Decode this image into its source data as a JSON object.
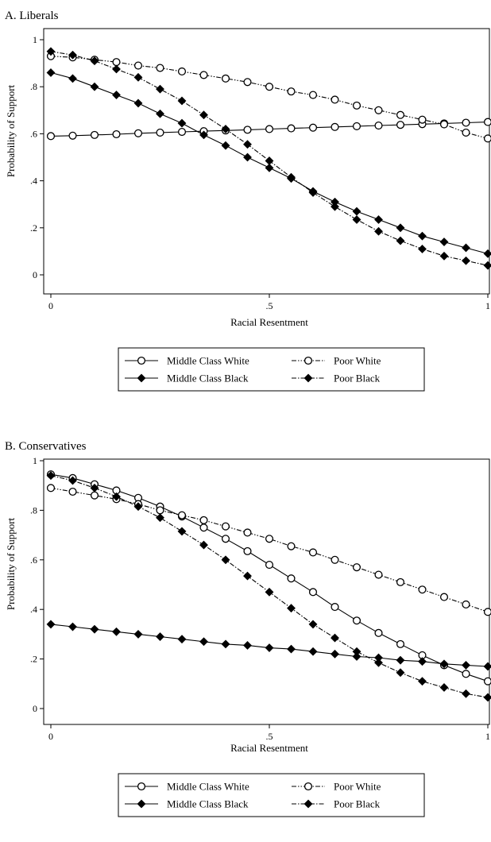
{
  "chart_data": [
    {
      "type": "line",
      "title": "A. Liberals",
      "xlabel": "Racial Resentment",
      "ylabel": "Probability of Support",
      "xlim": [
        0,
        1
      ],
      "ylim": [
        0,
        1
      ],
      "xticks": [
        0,
        0.5,
        1
      ],
      "xtick_labels": [
        "0",
        ".5",
        "1"
      ],
      "yticks": [
        0,
        0.2,
        0.4,
        0.6,
        0.8,
        1
      ],
      "ytick_labels": [
        "0",
        ".2",
        ".4",
        ".6",
        ".8",
        "1"
      ],
      "grid": false,
      "legend": "bottom",
      "x": [
        0,
        0.05,
        0.1,
        0.15,
        0.2,
        0.25,
        0.3,
        0.35,
        0.4,
        0.45,
        0.5,
        0.55,
        0.6,
        0.65,
        0.7,
        0.75,
        0.8,
        0.85,
        0.9,
        0.95,
        1
      ],
      "series": [
        {
          "name": "Middle Class White",
          "marker": "hollow-circle",
          "line": "solid",
          "values": [
            0.59,
            0.592,
            0.595,
            0.598,
            0.602,
            0.605,
            0.608,
            0.611,
            0.614,
            0.617,
            0.62,
            0.623,
            0.626,
            0.629,
            0.632,
            0.635,
            0.638,
            0.641,
            0.644,
            0.647,
            0.65
          ]
        },
        {
          "name": "Poor White",
          "marker": "hollow-circle",
          "line": "dash-dot-dot",
          "values": [
            0.93,
            0.925,
            0.915,
            0.905,
            0.89,
            0.88,
            0.865,
            0.85,
            0.835,
            0.82,
            0.8,
            0.78,
            0.765,
            0.745,
            0.72,
            0.7,
            0.68,
            0.66,
            0.64,
            0.605,
            0.58
          ]
        },
        {
          "name": "Middle Class Black",
          "marker": "filled-diamond",
          "line": "solid",
          "values": [
            0.86,
            0.835,
            0.8,
            0.765,
            0.73,
            0.685,
            0.645,
            0.595,
            0.55,
            0.5,
            0.455,
            0.41,
            0.355,
            0.31,
            0.27,
            0.235,
            0.2,
            0.165,
            0.14,
            0.115,
            0.09
          ]
        },
        {
          "name": "Poor Black",
          "marker": "filled-diamond",
          "line": "dash-dot",
          "values": [
            0.95,
            0.935,
            0.91,
            0.875,
            0.84,
            0.79,
            0.74,
            0.68,
            0.62,
            0.555,
            0.485,
            0.415,
            0.35,
            0.29,
            0.235,
            0.185,
            0.145,
            0.11,
            0.08,
            0.06,
            0.04
          ]
        }
      ]
    },
    {
      "type": "line",
      "title": "B. Conservatives",
      "xlabel": "Racial Resentment",
      "ylabel": "Probability of Support",
      "xlim": [
        0,
        1
      ],
      "ylim": [
        0,
        1
      ],
      "xticks": [
        0,
        0.5,
        1
      ],
      "xtick_labels": [
        "0",
        ".5",
        "1"
      ],
      "yticks": [
        0,
        0.2,
        0.4,
        0.6,
        0.8,
        1
      ],
      "ytick_labels": [
        "0",
        ".2",
        ".4",
        ".6",
        ".8",
        "1"
      ],
      "grid": false,
      "legend": "bottom",
      "x": [
        0,
        0.05,
        0.1,
        0.15,
        0.2,
        0.25,
        0.3,
        0.35,
        0.4,
        0.45,
        0.5,
        0.55,
        0.6,
        0.65,
        0.7,
        0.75,
        0.8,
        0.85,
        0.9,
        0.95,
        1
      ],
      "series": [
        {
          "name": "Middle Class White",
          "marker": "hollow-circle",
          "line": "solid",
          "values": [
            0.945,
            0.93,
            0.905,
            0.88,
            0.85,
            0.815,
            0.775,
            0.73,
            0.685,
            0.635,
            0.58,
            0.525,
            0.47,
            0.41,
            0.355,
            0.305,
            0.26,
            0.215,
            0.175,
            0.14,
            0.11
          ]
        },
        {
          "name": "Poor White",
          "marker": "hollow-circle",
          "line": "dash-dot-dot",
          "values": [
            0.89,
            0.875,
            0.86,
            0.845,
            0.825,
            0.8,
            0.78,
            0.76,
            0.735,
            0.71,
            0.685,
            0.655,
            0.63,
            0.6,
            0.57,
            0.54,
            0.51,
            0.48,
            0.45,
            0.42,
            0.39
          ]
        },
        {
          "name": "Middle Class Black",
          "marker": "filled-diamond",
          "line": "solid",
          "values": [
            0.34,
            0.33,
            0.32,
            0.31,
            0.3,
            0.29,
            0.28,
            0.27,
            0.26,
            0.255,
            0.245,
            0.24,
            0.23,
            0.22,
            0.21,
            0.205,
            0.195,
            0.19,
            0.18,
            0.175,
            0.17
          ]
        },
        {
          "name": "Poor Black",
          "marker": "filled-diamond",
          "line": "dash-dot",
          "values": [
            0.94,
            0.92,
            0.89,
            0.855,
            0.815,
            0.77,
            0.715,
            0.66,
            0.6,
            0.535,
            0.47,
            0.405,
            0.34,
            0.285,
            0.23,
            0.185,
            0.145,
            0.11,
            0.085,
            0.06,
            0.045
          ]
        }
      ]
    }
  ]
}
